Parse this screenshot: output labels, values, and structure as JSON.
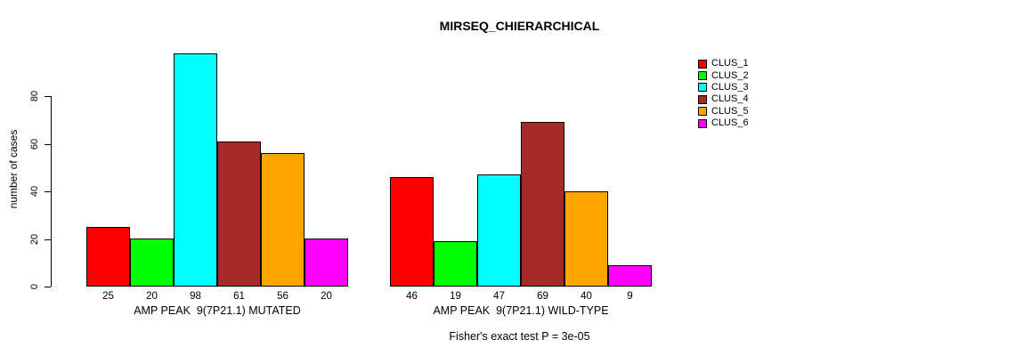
{
  "chart_data": {
    "type": "bar",
    "title": "MIRSEQ_CHIERARCHICAL",
    "ylabel": "number of cases",
    "caption": "Fisher's exact test P = 3e-05",
    "yaxis_range": [
      0,
      80
    ],
    "yticks": [
      0,
      20,
      40,
      60,
      80
    ],
    "grid": false,
    "legend_position": "right",
    "bar_borders": "#000000",
    "series": [
      {
        "name": "CLUS_1",
        "color": "#FF0000"
      },
      {
        "name": "CLUS_2",
        "color": "#00FF00"
      },
      {
        "name": "CLUS_3",
        "color": "#00FFFF"
      },
      {
        "name": "CLUS_4",
        "color": "#A52A2A"
      },
      {
        "name": "CLUS_5",
        "color": "#FFA500"
      },
      {
        "name": "CLUS_6",
        "color": "#FF00FF"
      }
    ],
    "groups": [
      {
        "label": "AMP PEAK  9(7P21.1) MUTATED",
        "values": [
          25,
          20,
          98,
          61,
          56,
          20
        ]
      },
      {
        "label": "AMP PEAK  9(7P21.1) WILD-TYPE",
        "values": [
          46,
          19,
          47,
          69,
          40,
          9
        ]
      }
    ]
  }
}
